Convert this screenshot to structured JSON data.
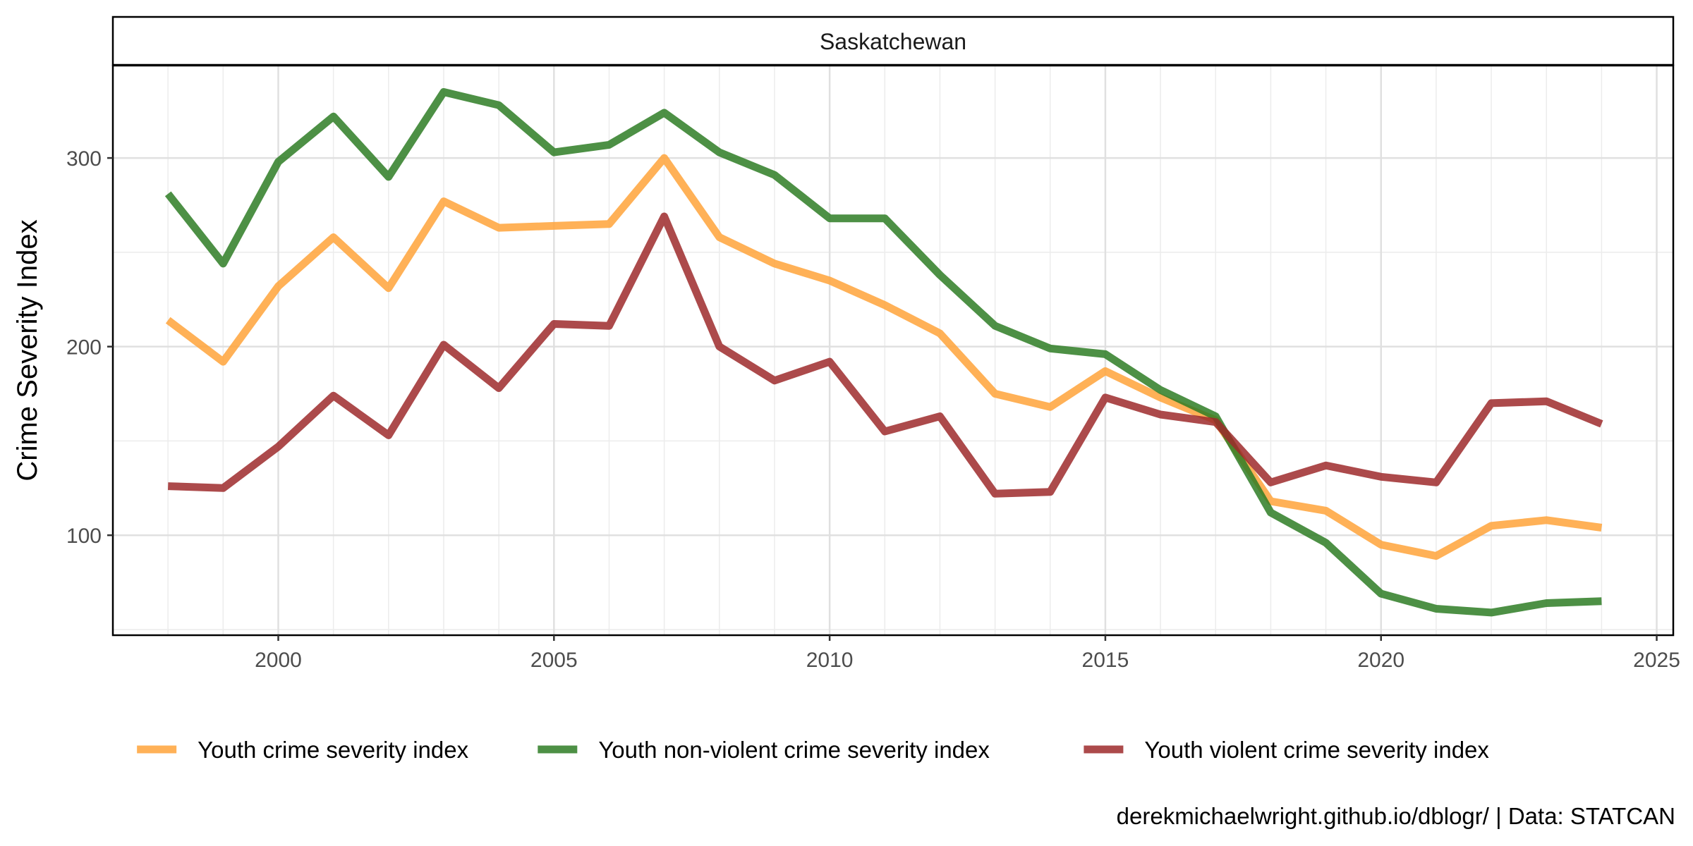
{
  "chart_data": {
    "type": "line",
    "facet": "Saskatchewan",
    "ylabel": "Crime Severity Index",
    "xlabel": "",
    "xlim": [
      1997,
      2025.3
    ],
    "ylim": [
      47,
      349
    ],
    "x_ticks": [
      2000,
      2005,
      2010,
      2015,
      2020,
      2025
    ],
    "y_ticks": [
      100,
      200,
      300
    ],
    "grid": true,
    "legend_position": "bottom",
    "x": [
      1998,
      1999,
      2000,
      2001,
      2002,
      2003,
      2004,
      2005,
      2006,
      2007,
      2008,
      2009,
      2010,
      2011,
      2012,
      2013,
      2014,
      2015,
      2016,
      2017,
      2018,
      2019,
      2020,
      2021,
      2022,
      2023,
      2024
    ],
    "series": [
      {
        "name": "Youth crime severity index",
        "color": "#FFA33A",
        "values": [
          214,
          192,
          232,
          258,
          231,
          277,
          263,
          264,
          265,
          300,
          258,
          244,
          235,
          222,
          207,
          175,
          168,
          187,
          173,
          161,
          118,
          113,
          95,
          89,
          105,
          108,
          104
        ]
      },
      {
        "name": "Youth non-violent crime severity index",
        "color": "#2E7D24",
        "values": [
          281,
          244,
          298,
          322,
          290,
          335,
          328,
          303,
          307,
          324,
          303,
          291,
          268,
          268,
          238,
          211,
          199,
          196,
          177,
          163,
          112,
          96,
          69,
          61,
          59,
          64,
          65
        ]
      },
      {
        "name": "Youth violent crime severity index",
        "color": "#9E2A2B",
        "values": [
          126,
          125,
          147,
          174,
          153,
          201,
          178,
          212,
          211,
          269,
          200,
          182,
          192,
          155,
          163,
          122,
          123,
          173,
          164,
          160,
          128,
          137,
          131,
          128,
          170,
          171,
          159
        ]
      }
    ]
  },
  "caption": "derekmichaelwright.github.io/dblogr/ | Data: STATCAN"
}
